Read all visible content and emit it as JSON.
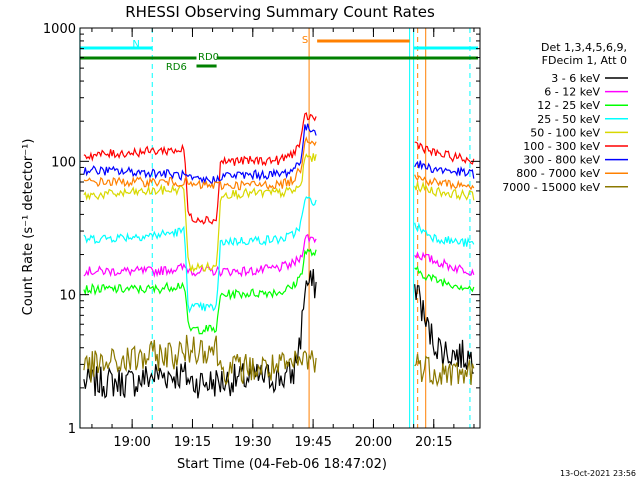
{
  "chart_data": {
    "type": "line",
    "title": "RHESSI Observing Summary Count Rates",
    "xlabel": "Start Time (04-Feb-06 18:47:02)",
    "ylabel": "Count Rate (s⁻¹ detector⁻¹)",
    "y_scale": "log",
    "ylim": [
      1,
      1000
    ],
    "xlim": [
      "18:47:02",
      "20:26:30"
    ],
    "x_ticks": [
      "19:00",
      "19:15",
      "19:30",
      "19:45",
      "20:00",
      "20:15"
    ],
    "y_ticks": [
      "1",
      "10",
      "100",
      "1000"
    ],
    "grid": false,
    "legend_header": [
      "Det 1,3,4,5,6,9,",
      "FDecim 1, Att 0"
    ],
    "legend_position": "right",
    "footer": "13-Oct-2021 23:56",
    "data_gap": [
      "19:46",
      "20:10"
    ],
    "series": [
      {
        "name": "3 - 6 keV",
        "color": "#000000",
        "x": [
          "18:48",
          "19:00",
          "19:06",
          "19:13",
          "19:15",
          "19:21",
          "19:25",
          "19:30",
          "19:37",
          "19:40",
          "19:42",
          "19:43",
          "20:11",
          "20:13",
          "20:15",
          "20:17",
          "20:20",
          "20:24",
          "20:25"
        ],
        "y": [
          2.2,
          2.2,
          2.5,
          2.5,
          2.2,
          2.2,
          2.3,
          2.4,
          2.4,
          2.5,
          5,
          12,
          11,
          6,
          4.5,
          3.8,
          3.6,
          3.4,
          3.3
        ]
      },
      {
        "name": "6 - 12 keV",
        "color": "#ff00ff",
        "x": [
          "18:48",
          "19:06",
          "19:13",
          "19:15",
          "19:30",
          "19:37",
          "19:40",
          "19:42",
          "19:43",
          "20:11",
          "20:15",
          "20:20",
          "20:25"
        ],
        "y": [
          15,
          15,
          16,
          15,
          15,
          16,
          17,
          19,
          27,
          20,
          18,
          16,
          15
        ]
      },
      {
        "name": "12 - 25 keV",
        "color": "#00ff00",
        "x": [
          "18:48",
          "19:06",
          "19:13",
          "19:14",
          "19:21",
          "19:22",
          "19:37",
          "19:40",
          "19:42",
          "19:43",
          "20:11",
          "20:15",
          "20:20",
          "20:25"
        ],
        "y": [
          11,
          11,
          12,
          5.5,
          5.5,
          10,
          10.5,
          11.5,
          14,
          21,
          15,
          13,
          12,
          11
        ]
      },
      {
        "name": "25 - 50 keV",
        "color": "#00ffff",
        "x": [
          "18:48",
          "19:06",
          "19:13",
          "19:14",
          "19:21",
          "19:22",
          "19:37",
          "19:40",
          "19:42",
          "19:43",
          "20:11",
          "20:15",
          "20:20",
          "20:25"
        ],
        "y": [
          26,
          28,
          30,
          8,
          8,
          25,
          26,
          28,
          34,
          52,
          32,
          27,
          25,
          24
        ]
      },
      {
        "name": "50 - 100 keV",
        "color": "#d8d800",
        "x": [
          "18:48",
          "19:06",
          "19:13",
          "19:14",
          "19:21",
          "19:22",
          "19:37",
          "19:40",
          "19:42",
          "19:43",
          "20:11",
          "20:15",
          "20:20",
          "20:25"
        ],
        "y": [
          55,
          60,
          62,
          16,
          16,
          57,
          58,
          60,
          65,
          110,
          65,
          60,
          57,
          55
        ]
      },
      {
        "name": "100 - 300 keV",
        "color": "#ff0000",
        "x": [
          "18:48",
          "19:06",
          "19:13",
          "19:14",
          "19:21",
          "19:22",
          "19:37",
          "19:40",
          "19:42",
          "19:43",
          "20:11",
          "20:15",
          "20:20",
          "20:25"
        ],
        "y": [
          110,
          120,
          122,
          38,
          36,
          100,
          102,
          115,
          140,
          220,
          135,
          115,
          108,
          100
        ]
      },
      {
        "name": "300 - 800 keV",
        "color": "#0000ff",
        "x": [
          "18:48",
          "19:06",
          "19:13",
          "19:15",
          "19:21",
          "19:22",
          "19:37",
          "19:40",
          "19:42",
          "19:43",
          "20:11",
          "20:15",
          "20:20",
          "20:25"
        ],
        "y": [
          86,
          82,
          78,
          72,
          72,
          78,
          80,
          86,
          105,
          180,
          95,
          88,
          84,
          80
        ]
      },
      {
        "name": "800 - 7000 keV",
        "color": "#ff8000",
        "x": [
          "18:48",
          "19:06",
          "19:13",
          "19:15",
          "19:21",
          "19:22",
          "19:37",
          "19:40",
          "19:42",
          "19:43",
          "20:11",
          "20:15",
          "20:20",
          "20:25"
        ],
        "y": [
          70,
          70,
          70,
          66,
          66,
          66,
          67,
          72,
          90,
          150,
          75,
          70,
          67,
          65
        ]
      },
      {
        "name": "7000 - 15000 keV",
        "color": "#8b7800",
        "x": [
          "18:48",
          "19:06",
          "19:13",
          "19:14",
          "19:21",
          "19:22",
          "19:37",
          "19:40",
          "19:43",
          "20:11",
          "20:15",
          "20:20",
          "20:25"
        ],
        "y": [
          2.8,
          3.5,
          3.6,
          4,
          4,
          2.8,
          2.8,
          2.9,
          3.3,
          3,
          2.7,
          2.6,
          2.6
        ]
      }
    ],
    "state_bars": [
      {
        "label": "N",
        "color": "#00ffff",
        "segments": [
          [
            "18:47",
            "19:05"
          ],
          [
            "20:10",
            "20:26"
          ]
        ]
      },
      {
        "label": "S",
        "color": "#ff8000",
        "segments": [
          [
            "19:46",
            "20:09"
          ]
        ]
      },
      {
        "label": "RD0",
        "color": "#008000",
        "segments": [
          [
            "18:47",
            "19:16"
          ],
          [
            "19:21",
            "20:26"
          ]
        ]
      },
      {
        "label": "RD6",
        "color": "#008000",
        "segments": [
          [
            "19:16",
            "19:21"
          ]
        ]
      }
    ],
    "vertical_markers": [
      {
        "x": "19:05",
        "color": "#00ffff",
        "style": "dashed"
      },
      {
        "x": "20:24",
        "color": "#00ffff",
        "style": "dashed"
      },
      {
        "x": "20:09",
        "color": "#00ffff",
        "style": "solid"
      },
      {
        "x": "20:10",
        "color": "#00ffff",
        "style": "solid"
      },
      {
        "x": "18:47",
        "color": "#00ffff",
        "style": "solid"
      },
      {
        "x": "19:44",
        "color": "#ff8000",
        "style": "solid"
      },
      {
        "x": "20:11",
        "color": "#ff8000",
        "style": "dashed"
      },
      {
        "x": "20:13",
        "color": "#ff8000",
        "style": "solid"
      }
    ]
  }
}
